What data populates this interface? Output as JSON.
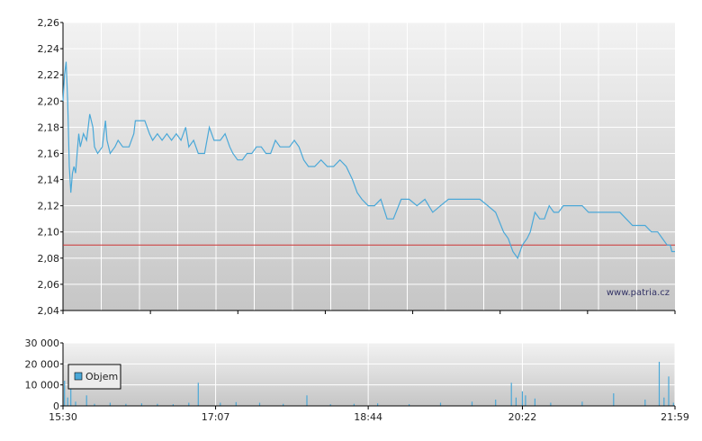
{
  "watermark": "www.patria.cz",
  "colors": {
    "price_line": "#4aa8d8",
    "reference_line": "#cc3333",
    "volume_bar": "#4aa8d8",
    "axis": "#000000"
  },
  "chart_data": [
    {
      "type": "line",
      "title": "",
      "xlabel": "",
      "ylabel": "",
      "x_range": [
        "15:30",
        "21:59"
      ],
      "xticks": [
        "15:30",
        "17:07",
        "18:44",
        "20:22",
        "21:59"
      ],
      "ylim": [
        2.04,
        2.26
      ],
      "yticks": [
        "2,04",
        "2,06",
        "2,08",
        "2,10",
        "2,12",
        "2,14",
        "2,16",
        "2,18",
        "2,20",
        "2,22",
        "2,24",
        "2,26"
      ],
      "grid": true,
      "reference_line": 2.09,
      "series": [
        {
          "points": [
            [
              "15:30",
              2.2
            ],
            [
              "15:31",
              2.22
            ],
            [
              "15:32",
              2.23
            ],
            [
              "15:33",
              2.2
            ],
            [
              "15:34",
              2.15
            ],
            [
              "15:35",
              2.13
            ],
            [
              "15:36",
              2.145
            ],
            [
              "15:37",
              2.15
            ],
            [
              "15:38",
              2.145
            ],
            [
              "15:39",
              2.16
            ],
            [
              "15:40",
              2.175
            ],
            [
              "15:41",
              2.165
            ],
            [
              "15:42",
              2.17
            ],
            [
              "15:43",
              2.175
            ],
            [
              "15:45",
              2.17
            ],
            [
              "15:46",
              2.18
            ],
            [
              "15:47",
              2.19
            ],
            [
              "15:49",
              2.18
            ],
            [
              "15:50",
              2.165
            ],
            [
              "15:52",
              2.16
            ],
            [
              "15:55",
              2.165
            ],
            [
              "15:56",
              2.175
            ],
            [
              "15:57",
              2.185
            ],
            [
              "15:58",
              2.17
            ],
            [
              "16:00",
              2.16
            ],
            [
              "16:03",
              2.165
            ],
            [
              "16:05",
              2.17
            ],
            [
              "16:08",
              2.165
            ],
            [
              "16:12",
              2.165
            ],
            [
              "16:15",
              2.175
            ],
            [
              "16:16",
              2.185
            ],
            [
              "16:22",
              2.185
            ],
            [
              "16:25",
              2.175
            ],
            [
              "16:27",
              2.17
            ],
            [
              "16:30",
              2.175
            ],
            [
              "16:33",
              2.17
            ],
            [
              "16:36",
              2.175
            ],
            [
              "16:39",
              2.17
            ],
            [
              "16:42",
              2.175
            ],
            [
              "16:45",
              2.17
            ],
            [
              "16:48",
              2.18
            ],
            [
              "16:50",
              2.165
            ],
            [
              "16:53",
              2.17
            ],
            [
              "16:56",
              2.16
            ],
            [
              "17:00",
              2.16
            ],
            [
              "17:03",
              2.18
            ],
            [
              "17:06",
              2.17
            ],
            [
              "17:10",
              2.17
            ],
            [
              "17:13",
              2.175
            ],
            [
              "17:16",
              2.165
            ],
            [
              "17:18",
              2.16
            ],
            [
              "17:21",
              2.155
            ],
            [
              "17:24",
              2.155
            ],
            [
              "17:27",
              2.16
            ],
            [
              "17:30",
              2.16
            ],
            [
              "17:33",
              2.165
            ],
            [
              "17:36",
              2.165
            ],
            [
              "17:39",
              2.16
            ],
            [
              "17:42",
              2.16
            ],
            [
              "17:45",
              2.17
            ],
            [
              "17:48",
              2.165
            ],
            [
              "17:51",
              2.165
            ],
            [
              "17:54",
              2.165
            ],
            [
              "17:57",
              2.17
            ],
            [
              "18:00",
              2.165
            ],
            [
              "18:03",
              2.155
            ],
            [
              "18:06",
              2.15
            ],
            [
              "18:10",
              2.15
            ],
            [
              "18:14",
              2.155
            ],
            [
              "18:18",
              2.15
            ],
            [
              "18:22",
              2.15
            ],
            [
              "18:26",
              2.155
            ],
            [
              "18:30",
              2.15
            ],
            [
              "18:34",
              2.14
            ],
            [
              "18:37",
              2.13
            ],
            [
              "18:40",
              2.125
            ],
            [
              "18:44",
              2.12
            ],
            [
              "18:48",
              2.12
            ],
            [
              "18:52",
              2.125
            ],
            [
              "18:56",
              2.11
            ],
            [
              "19:00",
              2.11
            ],
            [
              "19:05",
              2.125
            ],
            [
              "19:10",
              2.125
            ],
            [
              "19:15",
              2.12
            ],
            [
              "19:20",
              2.125
            ],
            [
              "19:25",
              2.115
            ],
            [
              "19:30",
              2.12
            ],
            [
              "19:35",
              2.125
            ],
            [
              "19:40",
              2.125
            ],
            [
              "19:45",
              2.125
            ],
            [
              "19:50",
              2.125
            ],
            [
              "19:55",
              2.125
            ],
            [
              "20:00",
              2.12
            ],
            [
              "20:05",
              2.115
            ],
            [
              "20:10",
              2.1
            ],
            [
              "20:13",
              2.095
            ],
            [
              "20:16",
              2.085
            ],
            [
              "20:19",
              2.08
            ],
            [
              "20:22",
              2.09
            ],
            [
              "20:25",
              2.095
            ],
            [
              "20:27",
              2.1
            ],
            [
              "20:30",
              2.115
            ],
            [
              "20:33",
              2.11
            ],
            [
              "20:36",
              2.11
            ],
            [
              "20:39",
              2.12
            ],
            [
              "20:42",
              2.115
            ],
            [
              "20:45",
              2.115
            ],
            [
              "20:48",
              2.12
            ],
            [
              "20:52",
              2.12
            ],
            [
              "20:56",
              2.12
            ],
            [
              "21:00",
              2.12
            ],
            [
              "21:04",
              2.115
            ],
            [
              "21:08",
              2.115
            ],
            [
              "21:12",
              2.115
            ],
            [
              "21:16",
              2.115
            ],
            [
              "21:20",
              2.115
            ],
            [
              "21:24",
              2.115
            ],
            [
              "21:28",
              2.11
            ],
            [
              "21:32",
              2.105
            ],
            [
              "21:36",
              2.105
            ],
            [
              "21:40",
              2.105
            ],
            [
              "21:44",
              2.1
            ],
            [
              "21:48",
              2.1
            ],
            [
              "21:51",
              2.095
            ],
            [
              "21:54",
              2.09
            ],
            [
              "21:56",
              2.09
            ],
            [
              "21:57",
              2.085
            ],
            [
              "21:59",
              2.085
            ]
          ]
        }
      ]
    },
    {
      "type": "bar",
      "title": "",
      "xlabel": "",
      "ylabel": "",
      "legend": [
        "Objem"
      ],
      "legend_position": "top-left",
      "x_range": [
        "15:30",
        "21:59"
      ],
      "xticks": [
        "15:30",
        "17:07",
        "18:44",
        "20:22",
        "21:59"
      ],
      "ylim": [
        0,
        30000
      ],
      "yticks": [
        "0",
        "10 000",
        "20 000",
        "30 000"
      ],
      "grid": true,
      "bars": [
        [
          "15:31",
          12000
        ],
        [
          "15:33",
          4000
        ],
        [
          "15:35",
          19000
        ],
        [
          "15:38",
          2000
        ],
        [
          "15:45",
          5000
        ],
        [
          "15:50",
          1000
        ],
        [
          "16:00",
          1500
        ],
        [
          "16:10",
          1000
        ],
        [
          "16:20",
          1200
        ],
        [
          "16:30",
          1000
        ],
        [
          "16:40",
          800
        ],
        [
          "16:50",
          1500
        ],
        [
          "16:56",
          11000
        ],
        [
          "17:10",
          1500
        ],
        [
          "17:20",
          1800
        ],
        [
          "17:35",
          1500
        ],
        [
          "17:50",
          1000
        ],
        [
          "18:05",
          5000
        ],
        [
          "18:20",
          800
        ],
        [
          "18:35",
          1000
        ],
        [
          "18:50",
          1200
        ],
        [
          "19:10",
          800
        ],
        [
          "19:30",
          1500
        ],
        [
          "19:50",
          2000
        ],
        [
          "20:05",
          3000
        ],
        [
          "20:15",
          11000
        ],
        [
          "20:18",
          4000
        ],
        [
          "20:22",
          7000
        ],
        [
          "20:24",
          5000
        ],
        [
          "20:30",
          3500
        ],
        [
          "20:40",
          1500
        ],
        [
          "21:00",
          2000
        ],
        [
          "21:20",
          6000
        ],
        [
          "21:40",
          3000
        ],
        [
          "21:49",
          21000
        ],
        [
          "21:52",
          4000
        ],
        [
          "21:55",
          14000
        ],
        [
          "21:58",
          1500
        ]
      ]
    }
  ]
}
